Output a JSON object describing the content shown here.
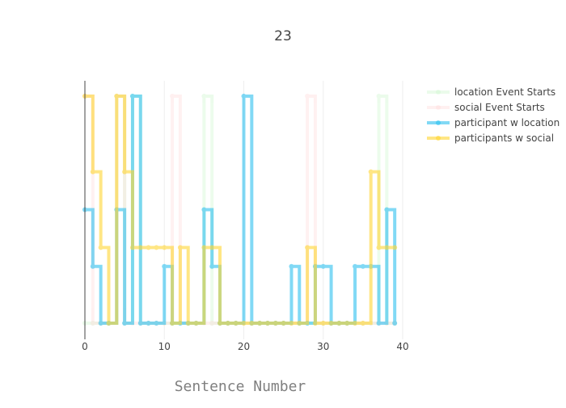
{
  "chart_data": {
    "type": "line",
    "line_shape": "step",
    "title": "23",
    "xlabel": "Sentence Number",
    "ylabel": "",
    "xlim": [
      0,
      40
    ],
    "ylim": [
      0,
      1
    ],
    "x_ticks": [
      "0",
      "10",
      "20",
      "30",
      "40"
    ],
    "y_tick_labels_shown": false,
    "grid": "vertical only",
    "legend_position": "top-right",
    "x": [
      0,
      1,
      2,
      3,
      4,
      5,
      6,
      7,
      8,
      9,
      10,
      11,
      12,
      13,
      14,
      15,
      16,
      17,
      18,
      19,
      20,
      21,
      22,
      23,
      24,
      25,
      26,
      27,
      28,
      29,
      30,
      31,
      32,
      33,
      34,
      35,
      36,
      37,
      38,
      39
    ],
    "series": [
      {
        "name": "location Event Starts",
        "color": "#c8f5c8",
        "opacity": 0.35,
        "values": [
          0,
          0,
          0,
          0,
          1,
          0,
          1,
          0,
          0,
          0,
          0,
          0,
          0,
          0,
          0,
          1,
          0,
          0,
          0,
          0,
          0,
          0,
          0,
          0,
          0,
          0,
          0,
          0,
          0,
          0,
          0,
          0,
          0,
          0,
          0,
          0,
          0,
          1,
          0,
          0
        ]
      },
      {
        "name": "social Event Starts",
        "color": "#ffd6d6",
        "opacity": 0.35,
        "values": [
          1,
          0,
          0,
          0,
          1,
          0,
          0,
          0,
          0,
          0,
          0,
          1,
          0,
          0,
          0,
          0,
          0,
          0,
          0,
          0,
          0,
          0,
          0,
          0,
          0,
          0,
          0,
          0,
          1,
          0,
          0,
          0,
          0,
          0,
          0,
          0,
          0,
          0,
          0,
          0
        ]
      },
      {
        "name": "participant w location",
        "color": "#2ec1f0",
        "opacity": 0.6,
        "values": [
          0.5,
          0.25,
          0,
          0,
          0.5,
          0,
          1,
          0,
          0,
          0,
          0.25,
          0,
          0,
          0,
          0,
          0.5,
          0.25,
          0,
          0,
          0,
          1,
          0,
          0,
          0,
          0,
          0,
          0.25,
          0,
          0,
          0.25,
          0.25,
          0,
          0,
          0,
          0.25,
          0.25,
          0.25,
          0,
          0.5,
          0
        ]
      },
      {
        "name": "participants w social",
        "color": "#ffd633",
        "opacity": 0.6,
        "values": [
          1,
          0.667,
          0.333,
          0,
          1,
          0.667,
          0.333,
          0.333,
          0.333,
          0.333,
          0.333,
          0,
          0.333,
          0,
          0,
          0.333,
          0.333,
          0,
          0,
          0,
          0,
          0,
          0,
          0,
          0,
          0,
          0,
          0,
          0.333,
          0,
          0,
          0,
          0,
          0,
          0,
          0,
          0.667,
          0.333,
          0.333,
          0.333
        ]
      }
    ]
  }
}
